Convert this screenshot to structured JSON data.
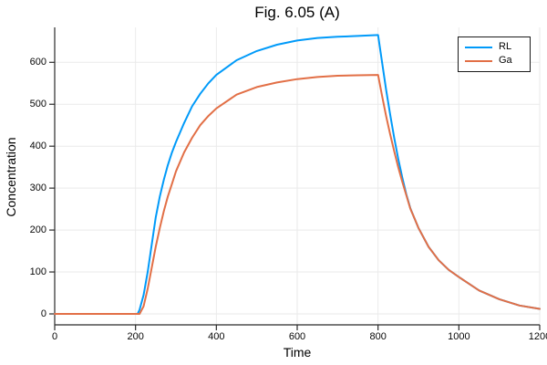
{
  "figure": {
    "title": "Fig. 6.05 (A)",
    "xlabel": "Time",
    "ylabel": "Concentration"
  },
  "chart_data": {
    "type": "line",
    "title": "Fig. 6.05 (A)",
    "xlabel": "Time",
    "ylabel": "Concentration",
    "xlim": [
      0,
      1200
    ],
    "ylim": [
      -25,
      685
    ],
    "xticks": [
      0,
      200,
      400,
      600,
      800,
      1000,
      1200
    ],
    "yticks": [
      0,
      100,
      200,
      300,
      400,
      500,
      600
    ],
    "grid": true,
    "legend_position": "top-right",
    "background_color": "#ffffff",
    "grid_color": "#eaeaea",
    "axis_color": "#2a2a2a",
    "x": [
      0,
      50,
      100,
      150,
      200,
      205,
      210,
      220,
      230,
      240,
      250,
      260,
      270,
      280,
      290,
      300,
      320,
      340,
      360,
      380,
      400,
      450,
      500,
      550,
      600,
      650,
      700,
      750,
      800,
      810,
      820,
      830,
      840,
      850,
      860,
      870,
      880,
      890,
      900,
      925,
      950,
      975,
      1000,
      1050,
      1100,
      1150,
      1200
    ],
    "series": [
      {
        "name": "RL",
        "color": "#009af9",
        "values": [
          0,
          0,
          0,
          0,
          0,
          0,
          10,
          45,
          100,
          165,
          230,
          280,
          320,
          355,
          385,
          410,
          455,
          495,
          525,
          550,
          570,
          605,
          627,
          642,
          652,
          658,
          661,
          663,
          665,
          600,
          535,
          475,
          420,
          370,
          325,
          285,
          252,
          228,
          205,
          160,
          128,
          105,
          88,
          56,
          35,
          20,
          12
        ]
      },
      {
        "name": "Ga",
        "color": "#e26f46",
        "values": [
          0,
          0,
          0,
          0,
          0,
          0,
          0,
          18,
          60,
          110,
          160,
          205,
          245,
          280,
          310,
          340,
          385,
          420,
          450,
          472,
          490,
          523,
          541,
          552,
          560,
          565,
          568,
          569,
          570,
          520,
          472,
          428,
          388,
          350,
          315,
          283,
          251,
          228,
          205,
          160,
          128,
          105,
          88,
          56,
          35,
          20,
          12
        ]
      }
    ]
  }
}
